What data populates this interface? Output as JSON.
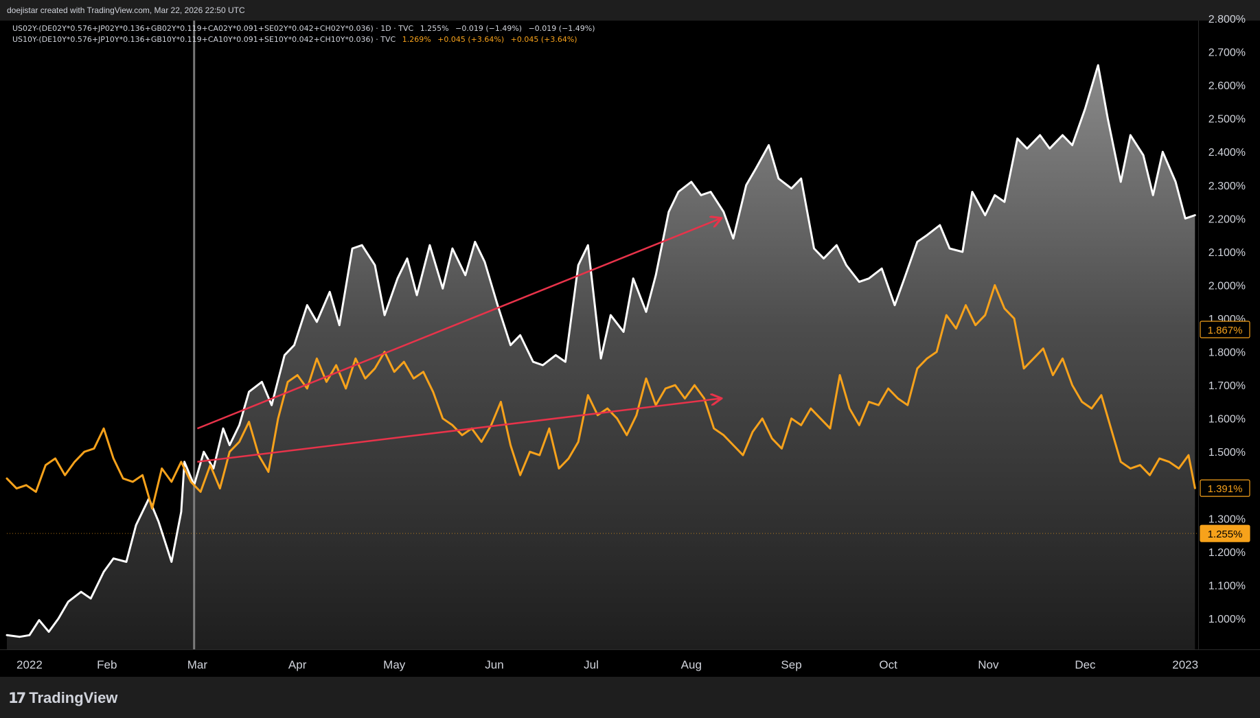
{
  "header": {
    "credit": "doejistar created with TradingView.com, Mar 22, 2026 22:50 UTC"
  },
  "footer": {
    "brand": "TradingView",
    "logo_icon": "tradingview-logo-icon",
    "logo_mark": "17"
  },
  "legend": {
    "row1": {
      "symbol": "US02Y-(DE02Y*0.576+JP02Y*0.136+GB02Y*0.119+CA02Y*0.091+SE02Y*0.042+CH02Y*0.036)",
      "interval": "· 1D · TVC",
      "value": "1.255%",
      "change": "−0.019 (−1.49%)",
      "change2": "−0.019 (−1.49%)"
    },
    "row2": {
      "symbol": "US10Y-(DE10Y*0.576+JP10Y*0.136+GB10Y*0.119+CA10Y*0.091+SE10Y*0.042+CH10Y*0.036)",
      "interval": "· TVC",
      "value": "1.269%",
      "change": "+0.045 (+3.64%)",
      "change2": "+0.045 (+3.64%)"
    }
  },
  "colors": {
    "background": "#000000",
    "white_series": "#ffffff",
    "orange_series": "#f7a21b",
    "arrow": "#e8334a",
    "axis_text": "#d1d4dc"
  },
  "chart_data": {
    "type": "line",
    "x_ticks": [
      "2022",
      "Feb",
      "Mar",
      "Apr",
      "May",
      "Jun",
      "Jul",
      "Aug",
      "Sep",
      "Oct",
      "Nov",
      "Dec",
      "2023"
    ],
    "y_ticks": [
      "1.000%",
      "1.100%",
      "1.200%",
      "1.300%",
      "1.400%",
      "1.500%",
      "1.600%",
      "1.700%",
      "1.800%",
      "1.900%",
      "2.000%",
      "2.100%",
      "2.200%",
      "2.300%",
      "2.400%",
      "2.500%",
      "2.600%",
      "2.700%",
      "2.800%"
    ],
    "ylim": [
      0.9,
      2.8
    ],
    "xlim": [
      "2022-01-01",
      "2023-01-05"
    ],
    "grid": false,
    "series": [
      {
        "name": "US02Y-(DE02Y*0.576+JP02Y*0.136+GB02Y*0.119+CA02Y*0.091+SE02Y*0.042+CH02Y*0.036)",
        "color": "#ffffff",
        "fill": true,
        "points": [
          [
            "2022-01-01",
            0.95
          ],
          [
            "2022-01-05",
            0.945
          ],
          [
            "2022-01-08",
            0.95
          ],
          [
            "2022-01-11",
            0.995
          ],
          [
            "2022-01-14",
            0.96
          ],
          [
            "2022-01-17",
            1.0
          ],
          [
            "2022-01-20",
            1.05
          ],
          [
            "2022-01-24",
            1.08
          ],
          [
            "2022-01-27",
            1.06
          ],
          [
            "2022-01-31",
            1.14
          ],
          [
            "2022-02-03",
            1.18
          ],
          [
            "2022-02-07",
            1.17
          ],
          [
            "2022-02-10",
            1.28
          ],
          [
            "2022-02-14",
            1.36
          ],
          [
            "2022-02-17",
            1.29
          ],
          [
            "2022-02-21",
            1.17
          ],
          [
            "2022-02-24",
            1.32
          ],
          [
            "2022-02-25",
            1.47
          ],
          [
            "2022-02-28",
            1.4
          ],
          [
            "2022-03-03",
            1.5
          ],
          [
            "2022-03-06",
            1.45
          ],
          [
            "2022-03-09",
            1.57
          ],
          [
            "2022-03-11",
            1.52
          ],
          [
            "2022-03-14",
            1.58
          ],
          [
            "2022-03-17",
            1.68
          ],
          [
            "2022-03-21",
            1.71
          ],
          [
            "2022-03-24",
            1.64
          ],
          [
            "2022-03-28",
            1.79
          ],
          [
            "2022-03-31",
            1.82
          ],
          [
            "2022-04-04",
            1.94
          ],
          [
            "2022-04-07",
            1.89
          ],
          [
            "2022-04-11",
            1.98
          ],
          [
            "2022-04-14",
            1.88
          ],
          [
            "2022-04-18",
            2.11
          ],
          [
            "2022-04-21",
            2.12
          ],
          [
            "2022-04-25",
            2.06
          ],
          [
            "2022-04-28",
            1.91
          ],
          [
            "2022-05-02",
            2.02
          ],
          [
            "2022-05-05",
            2.08
          ],
          [
            "2022-05-08",
            1.97
          ],
          [
            "2022-05-12",
            2.12
          ],
          [
            "2022-05-16",
            1.99
          ],
          [
            "2022-05-19",
            2.11
          ],
          [
            "2022-05-23",
            2.03
          ],
          [
            "2022-05-26",
            2.13
          ],
          [
            "2022-05-29",
            2.07
          ],
          [
            "2022-06-02",
            1.94
          ],
          [
            "2022-06-06",
            1.82
          ],
          [
            "2022-06-09",
            1.85
          ],
          [
            "2022-06-13",
            1.77
          ],
          [
            "2022-06-16",
            1.76
          ],
          [
            "2022-06-20",
            1.79
          ],
          [
            "2022-06-23",
            1.77
          ],
          [
            "2022-06-27",
            2.06
          ],
          [
            "2022-06-30",
            2.12
          ],
          [
            "2022-07-04",
            1.78
          ],
          [
            "2022-07-07",
            1.91
          ],
          [
            "2022-07-11",
            1.86
          ],
          [
            "2022-07-14",
            2.02
          ],
          [
            "2022-07-18",
            1.92
          ],
          [
            "2022-07-21",
            2.03
          ],
          [
            "2022-07-25",
            2.22
          ],
          [
            "2022-07-28",
            2.28
          ],
          [
            "2022-08-01",
            2.31
          ],
          [
            "2022-08-04",
            2.27
          ],
          [
            "2022-08-07",
            2.28
          ],
          [
            "2022-08-11",
            2.22
          ],
          [
            "2022-08-14",
            2.14
          ],
          [
            "2022-08-18",
            2.3
          ],
          [
            "2022-08-21",
            2.35
          ],
          [
            "2022-08-25",
            2.42
          ],
          [
            "2022-08-28",
            2.32
          ],
          [
            "2022-09-01",
            2.29
          ],
          [
            "2022-09-04",
            2.32
          ],
          [
            "2022-09-08",
            2.11
          ],
          [
            "2022-09-11",
            2.08
          ],
          [
            "2022-09-15",
            2.12
          ],
          [
            "2022-09-18",
            2.06
          ],
          [
            "2022-09-22",
            2.01
          ],
          [
            "2022-09-25",
            2.02
          ],
          [
            "2022-09-29",
            2.05
          ],
          [
            "2022-10-03",
            1.94
          ],
          [
            "2022-10-06",
            2.02
          ],
          [
            "2022-10-10",
            2.13
          ],
          [
            "2022-10-13",
            2.15
          ],
          [
            "2022-10-17",
            2.18
          ],
          [
            "2022-10-20",
            2.11
          ],
          [
            "2022-10-24",
            2.1
          ],
          [
            "2022-10-27",
            2.28
          ],
          [
            "2022-10-31",
            2.21
          ],
          [
            "2022-11-03",
            2.27
          ],
          [
            "2022-11-06",
            2.25
          ],
          [
            "2022-11-10",
            2.44
          ],
          [
            "2022-11-13",
            2.41
          ],
          [
            "2022-11-17",
            2.45
          ],
          [
            "2022-11-20",
            2.41
          ],
          [
            "2022-11-24",
            2.45
          ],
          [
            "2022-11-27",
            2.42
          ],
          [
            "2022-12-01",
            2.53
          ],
          [
            "2022-12-05",
            2.66
          ],
          [
            "2022-12-08",
            2.5
          ],
          [
            "2022-12-12",
            2.31
          ],
          [
            "2022-12-15",
            2.45
          ],
          [
            "2022-12-19",
            2.39
          ],
          [
            "2022-12-22",
            2.27
          ],
          [
            "2022-12-25",
            2.4
          ],
          [
            "2022-12-29",
            2.31
          ],
          [
            "2023-01-01",
            2.2
          ],
          [
            "2023-01-04",
            2.21
          ]
        ]
      },
      {
        "name": "US10Y-(DE10Y*0.576+JP10Y*0.136+GB10Y*0.119+CA10Y*0.091+SE10Y*0.042+CH10Y*0.036)",
        "color": "#f7a21b",
        "fill": false,
        "points": [
          [
            "2022-01-01",
            1.42
          ],
          [
            "2022-01-04",
            1.39
          ],
          [
            "2022-01-07",
            1.4
          ],
          [
            "2022-01-10",
            1.38
          ],
          [
            "2022-01-13",
            1.46
          ],
          [
            "2022-01-16",
            1.48
          ],
          [
            "2022-01-19",
            1.43
          ],
          [
            "2022-01-22",
            1.47
          ],
          [
            "2022-01-25",
            1.5
          ],
          [
            "2022-01-28",
            1.51
          ],
          [
            "2022-01-31",
            1.57
          ],
          [
            "2022-02-03",
            1.48
          ],
          [
            "2022-02-06",
            1.42
          ],
          [
            "2022-02-09",
            1.41
          ],
          [
            "2022-02-12",
            1.43
          ],
          [
            "2022-02-15",
            1.33
          ],
          [
            "2022-02-18",
            1.45
          ],
          [
            "2022-02-21",
            1.41
          ],
          [
            "2022-02-24",
            1.47
          ],
          [
            "2022-02-27",
            1.41
          ],
          [
            "2022-03-02",
            1.38
          ],
          [
            "2022-03-05",
            1.46
          ],
          [
            "2022-03-08",
            1.39
          ],
          [
            "2022-03-11",
            1.5
          ],
          [
            "2022-03-14",
            1.53
          ],
          [
            "2022-03-17",
            1.59
          ],
          [
            "2022-03-20",
            1.49
          ],
          [
            "2022-03-23",
            1.44
          ],
          [
            "2022-03-26",
            1.6
          ],
          [
            "2022-03-29",
            1.71
          ],
          [
            "2022-04-01",
            1.73
          ],
          [
            "2022-04-04",
            1.69
          ],
          [
            "2022-04-07",
            1.78
          ],
          [
            "2022-04-10",
            1.71
          ],
          [
            "2022-04-13",
            1.76
          ],
          [
            "2022-04-16",
            1.69
          ],
          [
            "2022-04-19",
            1.78
          ],
          [
            "2022-04-22",
            1.72
          ],
          [
            "2022-04-25",
            1.75
          ],
          [
            "2022-04-28",
            1.8
          ],
          [
            "2022-05-01",
            1.74
          ],
          [
            "2022-05-04",
            1.77
          ],
          [
            "2022-05-07",
            1.72
          ],
          [
            "2022-05-10",
            1.74
          ],
          [
            "2022-05-13",
            1.68
          ],
          [
            "2022-05-16",
            1.6
          ],
          [
            "2022-05-19",
            1.58
          ],
          [
            "2022-05-22",
            1.55
          ],
          [
            "2022-05-25",
            1.57
          ],
          [
            "2022-05-28",
            1.53
          ],
          [
            "2022-05-31",
            1.58
          ],
          [
            "2022-06-03",
            1.65
          ],
          [
            "2022-06-06",
            1.52
          ],
          [
            "2022-06-09",
            1.43
          ],
          [
            "2022-06-12",
            1.5
          ],
          [
            "2022-06-15",
            1.49
          ],
          [
            "2022-06-18",
            1.57
          ],
          [
            "2022-06-21",
            1.45
          ],
          [
            "2022-06-24",
            1.48
          ],
          [
            "2022-06-27",
            1.53
          ],
          [
            "2022-06-30",
            1.67
          ],
          [
            "2022-07-03",
            1.61
          ],
          [
            "2022-07-06",
            1.63
          ],
          [
            "2022-07-09",
            1.6
          ],
          [
            "2022-07-12",
            1.55
          ],
          [
            "2022-07-15",
            1.61
          ],
          [
            "2022-07-18",
            1.72
          ],
          [
            "2022-07-21",
            1.64
          ],
          [
            "2022-07-24",
            1.69
          ],
          [
            "2022-07-27",
            1.7
          ],
          [
            "2022-07-30",
            1.66
          ],
          [
            "2022-08-02",
            1.7
          ],
          [
            "2022-08-05",
            1.66
          ],
          [
            "2022-08-08",
            1.57
          ],
          [
            "2022-08-11",
            1.55
          ],
          [
            "2022-08-14",
            1.52
          ],
          [
            "2022-08-17",
            1.49
          ],
          [
            "2022-08-20",
            1.56
          ],
          [
            "2022-08-23",
            1.6
          ],
          [
            "2022-08-26",
            1.54
          ],
          [
            "2022-08-29",
            1.51
          ],
          [
            "2022-09-01",
            1.6
          ],
          [
            "2022-09-04",
            1.58
          ],
          [
            "2022-09-07",
            1.63
          ],
          [
            "2022-09-10",
            1.6
          ],
          [
            "2022-09-13",
            1.57
          ],
          [
            "2022-09-16",
            1.73
          ],
          [
            "2022-09-19",
            1.63
          ],
          [
            "2022-09-22",
            1.58
          ],
          [
            "2022-09-25",
            1.65
          ],
          [
            "2022-09-28",
            1.64
          ],
          [
            "2022-10-01",
            1.69
          ],
          [
            "2022-10-04",
            1.66
          ],
          [
            "2022-10-07",
            1.64
          ],
          [
            "2022-10-10",
            1.75
          ],
          [
            "2022-10-13",
            1.78
          ],
          [
            "2022-10-16",
            1.8
          ],
          [
            "2022-10-19",
            1.91
          ],
          [
            "2022-10-22",
            1.87
          ],
          [
            "2022-10-25",
            1.94
          ],
          [
            "2022-10-28",
            1.88
          ],
          [
            "2022-10-31",
            1.91
          ],
          [
            "2022-11-03",
            2.0
          ],
          [
            "2022-11-06",
            1.93
          ],
          [
            "2022-11-09",
            1.9
          ],
          [
            "2022-11-12",
            1.75
          ],
          [
            "2022-11-15",
            1.78
          ],
          [
            "2022-11-18",
            1.81
          ],
          [
            "2022-11-21",
            1.73
          ],
          [
            "2022-11-24",
            1.78
          ],
          [
            "2022-11-27",
            1.7
          ],
          [
            "2022-11-30",
            1.65
          ],
          [
            "2022-12-03",
            1.63
          ],
          [
            "2022-12-06",
            1.67
          ],
          [
            "2022-12-09",
            1.57
          ],
          [
            "2022-12-12",
            1.47
          ],
          [
            "2022-12-15",
            1.45
          ],
          [
            "2022-12-18",
            1.46
          ],
          [
            "2022-12-21",
            1.43
          ],
          [
            "2022-12-24",
            1.48
          ],
          [
            "2022-12-27",
            1.47
          ],
          [
            "2022-12-30",
            1.45
          ],
          [
            "2023-01-02",
            1.49
          ],
          [
            "2023-01-04",
            1.391
          ]
        ]
      }
    ],
    "annotations": [
      {
        "type": "arrow",
        "color": "#e8334a",
        "from": [
          "2022-03-01",
          1.57
        ],
        "to": [
          "2022-08-10",
          2.2
        ]
      },
      {
        "type": "arrow",
        "color": "#e8334a",
        "from": [
          "2022-03-01",
          1.47
        ],
        "to": [
          "2022-08-10",
          1.66
        ]
      }
    ],
    "crosshair_x": "2022-02-28",
    "price_line": {
      "value": 1.255,
      "label": "1.255%",
      "color": "#f7a21b"
    },
    "price_labels": [
      {
        "value": 1.867,
        "label": "1.867%",
        "color": "#f7a21b",
        "style": "outline"
      },
      {
        "value": 1.391,
        "label": "1.391%",
        "color": "#f7a21b",
        "style": "outline"
      },
      {
        "value": 1.255,
        "label": "1.255%",
        "color": "#f7a21b",
        "style": "filled"
      }
    ]
  }
}
